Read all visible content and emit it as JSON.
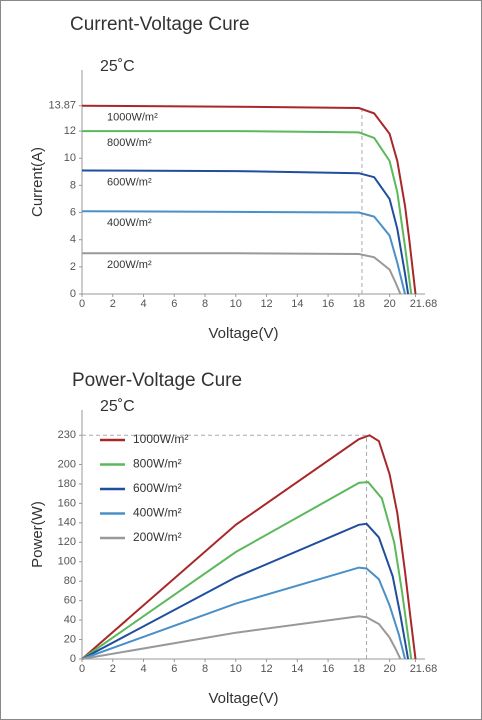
{
  "chart_data": [
    {
      "type": "line",
      "title": "Current-Voltage Cure",
      "annotation": "25˚C",
      "xlabel": "Voltage(V)",
      "ylabel": "Current(A)",
      "xlim": [
        0,
        22.3
      ],
      "xticks": [
        0,
        2,
        4,
        6,
        8,
        10,
        12,
        14,
        16,
        18,
        20,
        21.68
      ],
      "ylim": [
        0,
        16.5
      ],
      "yticks": [
        0,
        2,
        4,
        6,
        8,
        10,
        12,
        13.87
      ],
      "legend": "inline",
      "dashed_x": 18.2,
      "series": [
        {
          "name": "1000W/m²",
          "color": "#a8282a",
          "x": [
            0,
            10,
            18,
            19,
            20,
            20.5,
            21,
            21.3,
            21.68
          ],
          "values": [
            13.87,
            13.8,
            13.7,
            13.3,
            11.8,
            9.8,
            6.5,
            3.8,
            0
          ]
        },
        {
          "name": "800W/m²",
          "color": "#5cb85c",
          "x": [
            0,
            10,
            18,
            19,
            20,
            20.5,
            21,
            21.4
          ],
          "values": [
            12.0,
            12.0,
            11.9,
            11.5,
            9.8,
            7.5,
            3.5,
            0
          ]
        },
        {
          "name": "600W/m²",
          "color": "#1f4e9c",
          "x": [
            0,
            10,
            18,
            19,
            20,
            20.5,
            21,
            21.2
          ],
          "values": [
            9.1,
            9.05,
            8.9,
            8.6,
            7.0,
            4.8,
            1.5,
            0
          ]
        },
        {
          "name": "400W/m²",
          "color": "#4a90c8",
          "x": [
            0,
            10,
            18,
            19,
            20,
            20.5,
            21
          ],
          "values": [
            6.1,
            6.05,
            6.0,
            5.7,
            4.3,
            2.3,
            0
          ]
        },
        {
          "name": "200W/m²",
          "color": "#999999",
          "x": [
            0,
            10,
            18,
            19,
            20,
            20.4,
            20.7
          ],
          "values": [
            3.0,
            3.0,
            2.95,
            2.7,
            1.8,
            0.8,
            0
          ]
        }
      ]
    },
    {
      "type": "line",
      "title": "Power-Voltage Cure",
      "annotation": "25˚C",
      "xlabel": "Voltage(V)",
      "ylabel": "Power(W)",
      "xlim": [
        0,
        22.3
      ],
      "xticks": [
        0,
        2,
        4,
        6,
        8,
        10,
        12,
        14,
        16,
        18,
        20,
        21.68
      ],
      "ylim": [
        0,
        256
      ],
      "yticks": [
        0,
        20,
        40,
        60,
        80,
        100,
        120,
        140,
        160,
        180,
        200,
        230
      ],
      "legend": "upper left",
      "dashed_x": 18.5,
      "dashed_y": 230,
      "series": [
        {
          "name": "1000W/m²",
          "color": "#a8282a",
          "x": [
            0,
            10,
            18,
            18.7,
            19.3,
            20,
            20.5,
            21,
            21.3,
            21.68
          ],
          "values": [
            0,
            138,
            226,
            230,
            224,
            190,
            150,
            90,
            50,
            0
          ]
        },
        {
          "name": "800W/m²",
          "color": "#5cb85c",
          "x": [
            0,
            10,
            18,
            18.6,
            19.5,
            20.3,
            20.8,
            21.4
          ],
          "values": [
            0,
            110,
            181,
            182,
            165,
            120,
            70,
            0
          ]
        },
        {
          "name": "600W/m²",
          "color": "#1f4e9c",
          "x": [
            0,
            10,
            18,
            18.5,
            19.3,
            20.2,
            20.7,
            21.2
          ],
          "values": [
            0,
            84,
            138,
            139,
            125,
            85,
            45,
            0
          ]
        },
        {
          "name": "400W/m²",
          "color": "#4a90c8",
          "x": [
            0,
            10,
            18,
            18.5,
            19.3,
            20,
            20.6,
            21
          ],
          "values": [
            0,
            57,
            94,
            93,
            82,
            55,
            25,
            0
          ]
        },
        {
          "name": "200W/m²",
          "color": "#999999",
          "x": [
            0,
            10,
            18,
            18.5,
            19.3,
            20,
            20.4,
            20.7
          ],
          "values": [
            0,
            27,
            44,
            43,
            36,
            22,
            10,
            0
          ]
        }
      ]
    }
  ]
}
